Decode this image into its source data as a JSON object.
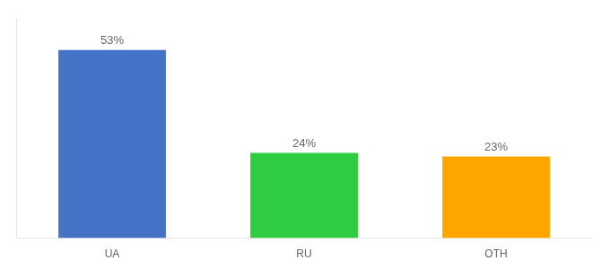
{
  "chart_data": {
    "type": "bar",
    "categories": [
      "UA",
      "RU",
      "OTH"
    ],
    "values": [
      53,
      24,
      23
    ],
    "value_labels": [
      "53%",
      "24%",
      "23%"
    ],
    "colors": [
      "#4472C4",
      "#2ECC40",
      "#FFA500"
    ],
    "ylim": [
      0,
      62
    ],
    "yticks": [],
    "grid": false,
    "data_labels": true,
    "tick_labels": "x"
  }
}
